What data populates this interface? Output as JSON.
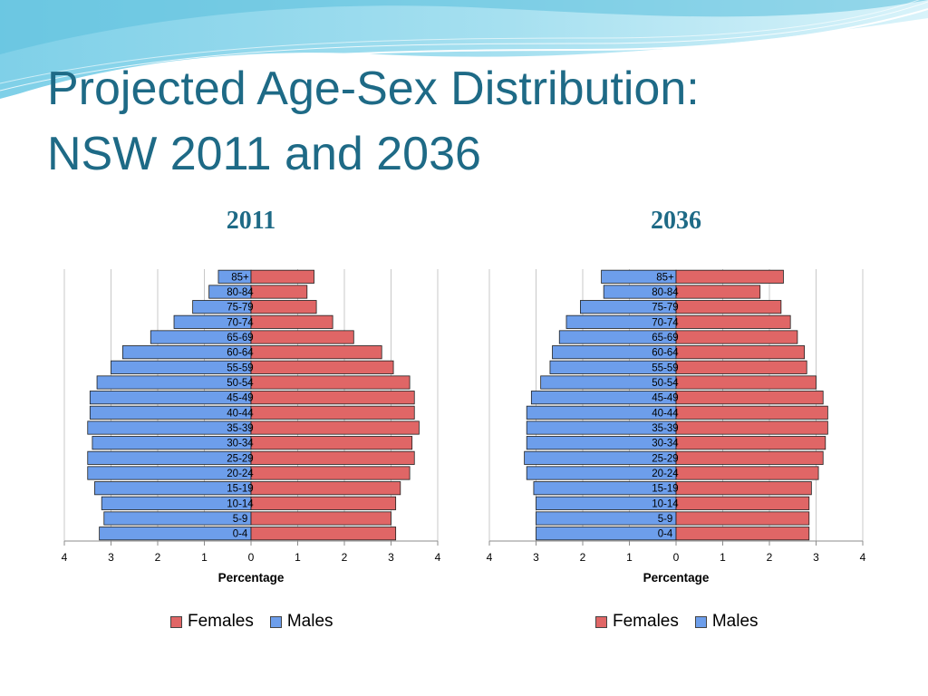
{
  "slide": {
    "title_line1": "Projected Age-Sex Distribution:",
    "title_line2": "NSW 2011 and 2036"
  },
  "colors": {
    "title": "#1e6a86",
    "females": "#e06666",
    "males": "#6d9eeb",
    "banner_light": "#c8ecf6",
    "banner_dark": "#5bbfdc"
  },
  "chart_data": [
    {
      "type": "bar",
      "orientation": "horizontal-pyramid",
      "title": "2011",
      "xlabel": "Percentage",
      "ylabel": "",
      "xlim": [
        -4,
        4
      ],
      "x_ticks": [
        "4",
        "3",
        "2",
        "1",
        "0",
        "1",
        "2",
        "3",
        "4"
      ],
      "grid": true,
      "legend_position": "bottom",
      "categories": [
        "0-4",
        "5-9",
        "10-14",
        "15-19",
        "20-24",
        "25-29",
        "30-34",
        "35-39",
        "40-44",
        "45-49",
        "50-54",
        "55-59",
        "60-64",
        "65-69",
        "70-74",
        "75-79",
        "80-84",
        "85+"
      ],
      "series": [
        {
          "name": "Females",
          "values": [
            3.1,
            3.0,
            3.1,
            3.2,
            3.4,
            3.5,
            3.45,
            3.6,
            3.5,
            3.5,
            3.4,
            3.05,
            2.8,
            2.2,
            1.75,
            1.4,
            1.2,
            1.35
          ]
        },
        {
          "name": "Males",
          "values": [
            3.25,
            3.15,
            3.2,
            3.35,
            3.5,
            3.5,
            3.4,
            3.5,
            3.45,
            3.45,
            3.3,
            3.0,
            2.75,
            2.15,
            1.65,
            1.25,
            0.9,
            0.7
          ]
        }
      ]
    },
    {
      "type": "bar",
      "orientation": "horizontal-pyramid",
      "title": "2036",
      "xlabel": "Percentage",
      "ylabel": "",
      "xlim": [
        -4,
        4
      ],
      "x_ticks": [
        "4",
        "3",
        "2",
        "1",
        "0",
        "1",
        "2",
        "3",
        "4"
      ],
      "grid": true,
      "legend_position": "bottom",
      "categories": [
        "0-4",
        "5-9",
        "10-14",
        "15-19",
        "20-24",
        "25-29",
        "30-34",
        "35-39",
        "40-44",
        "45-49",
        "50-54",
        "55-59",
        "60-64",
        "65-69",
        "70-74",
        "75-79",
        "80-84",
        "85+"
      ],
      "series": [
        {
          "name": "Females",
          "values": [
            2.85,
            2.85,
            2.85,
            2.9,
            3.05,
            3.15,
            3.2,
            3.25,
            3.25,
            3.15,
            3.0,
            2.8,
            2.75,
            2.6,
            2.45,
            2.25,
            1.8,
            2.3
          ]
        },
        {
          "name": "Males",
          "values": [
            3.0,
            3.0,
            3.0,
            3.05,
            3.2,
            3.25,
            3.2,
            3.2,
            3.2,
            3.1,
            2.9,
            2.7,
            2.65,
            2.5,
            2.35,
            2.05,
            1.55,
            1.6
          ]
        }
      ]
    }
  ]
}
